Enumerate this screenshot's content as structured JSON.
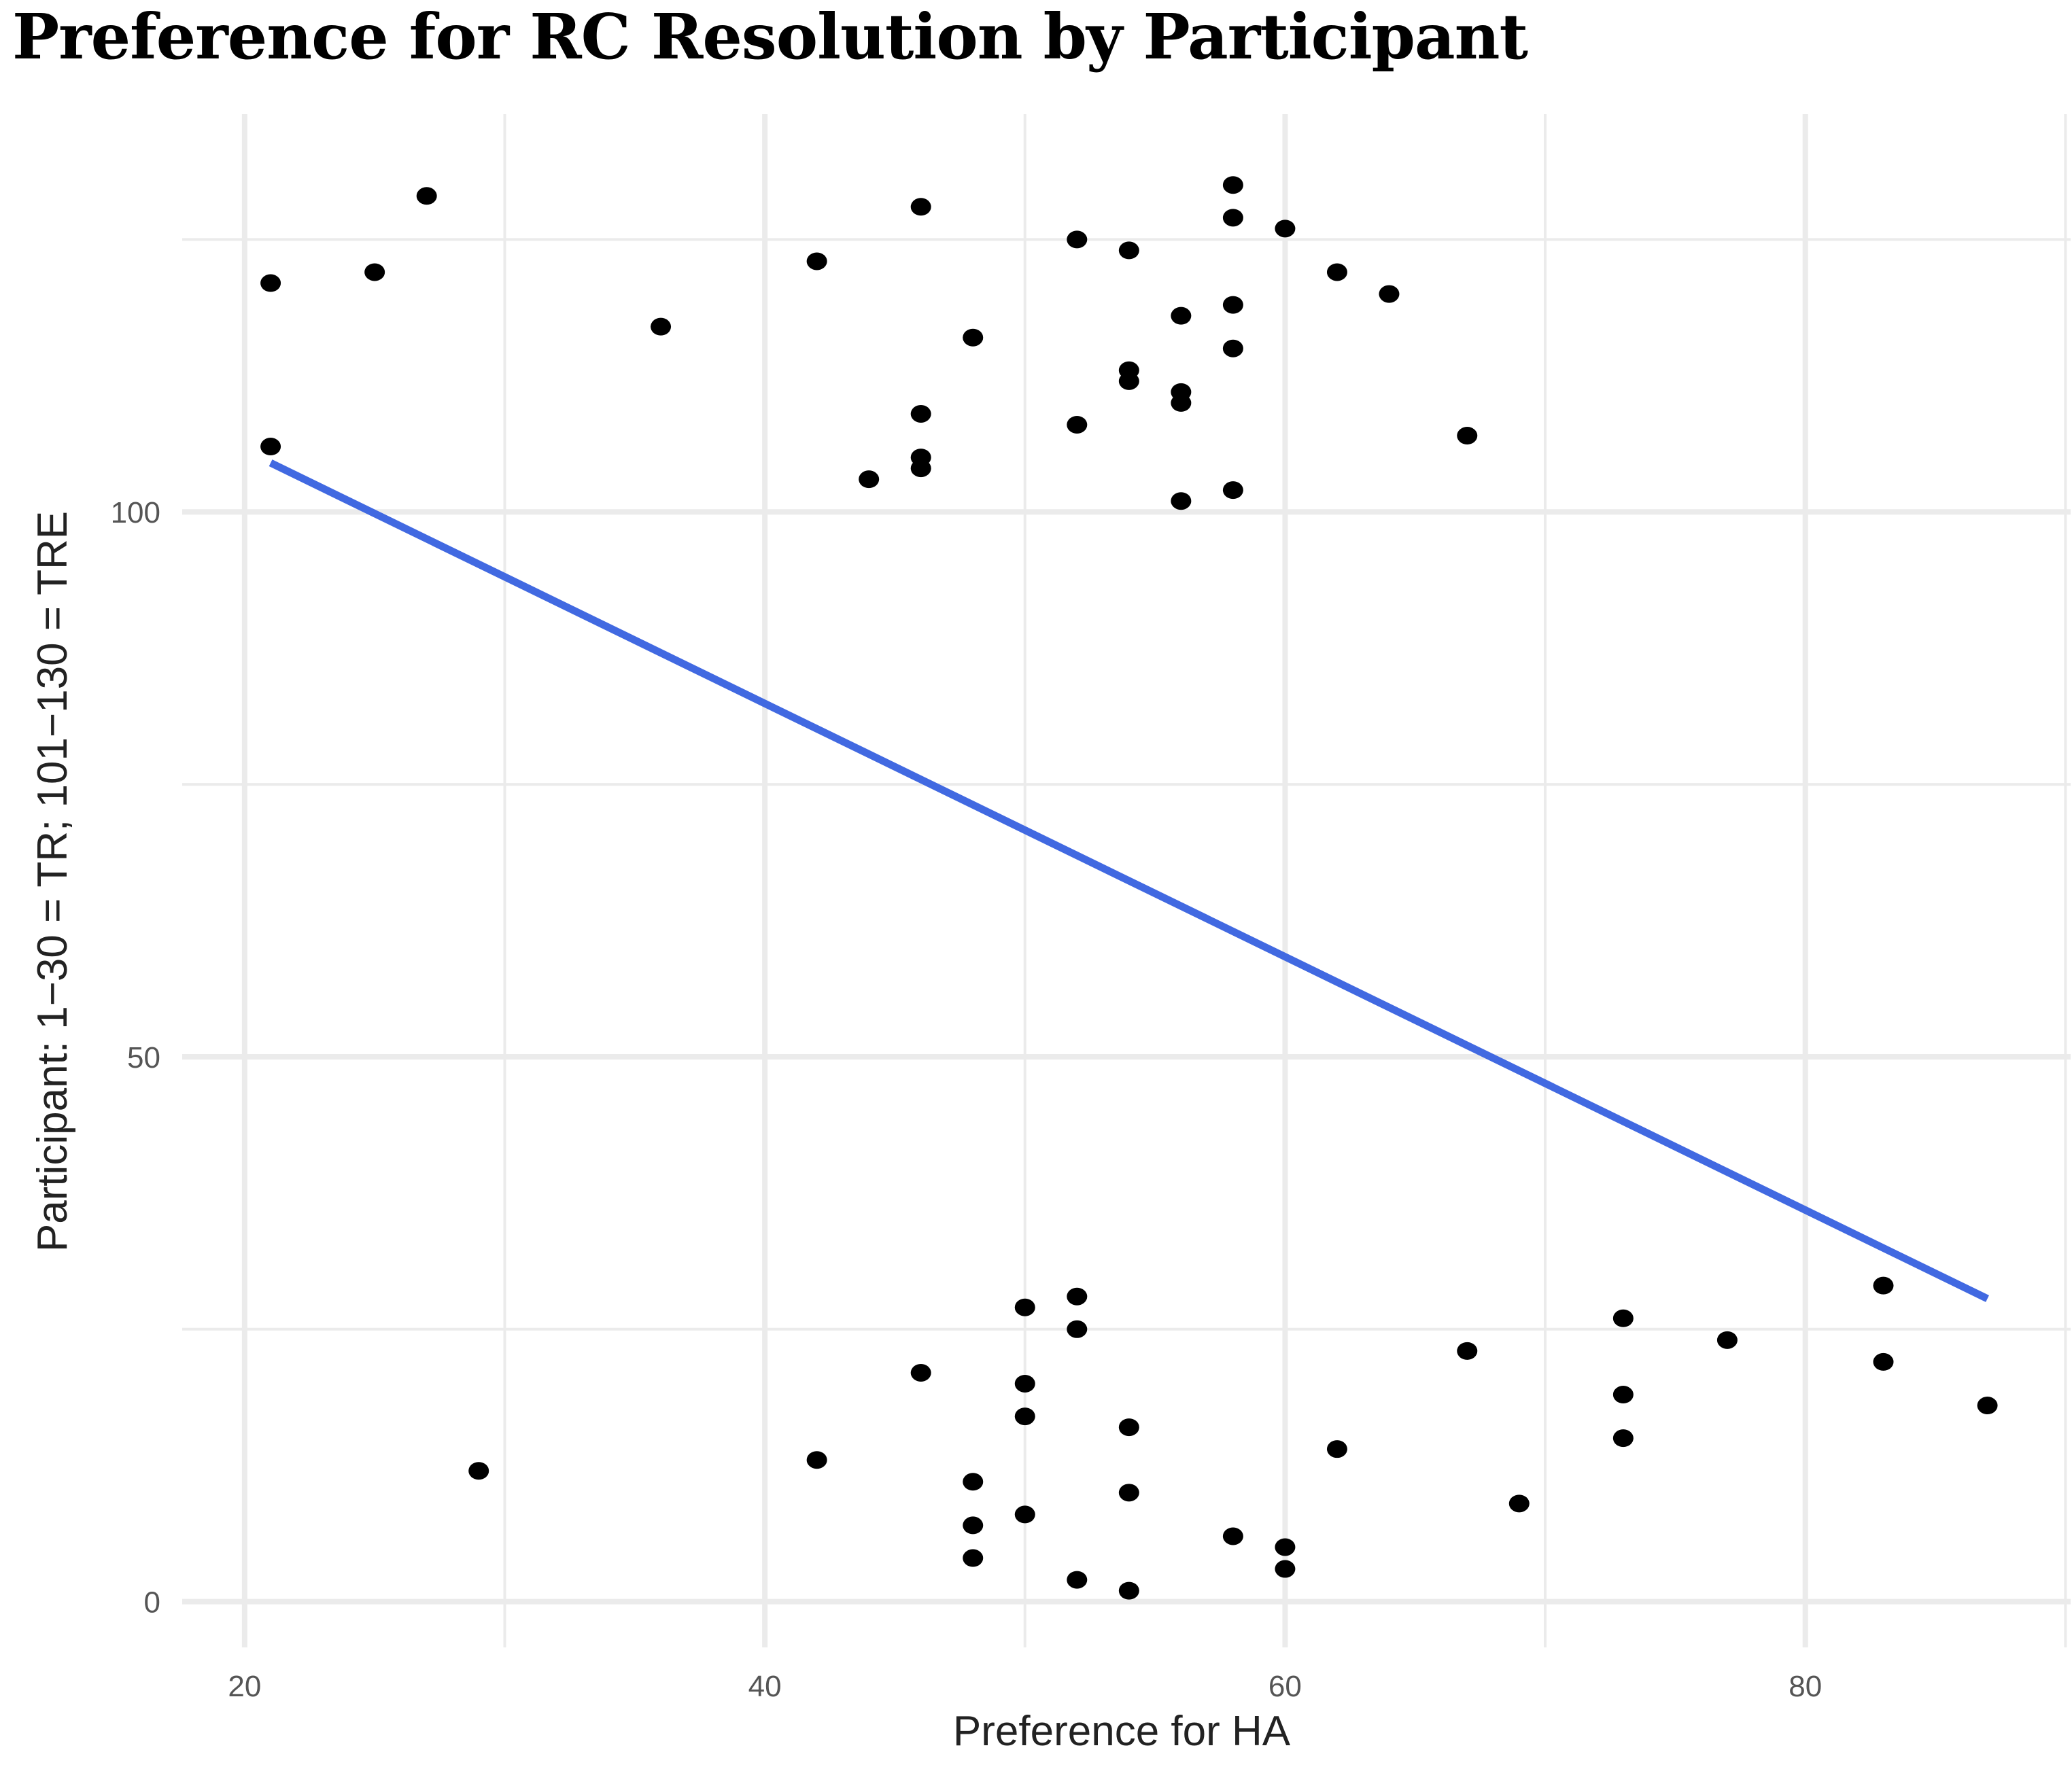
{
  "chart_data": {
    "type": "scatter",
    "title": "Preference for RC Resolution by Participant",
    "xlabel": "Preference for HA",
    "ylabel": "Participant: 1−30 = TR; 101−130 = TRE",
    "xlim": [
      17.6,
      90.2
    ],
    "ylim": [
      -4.2,
      136.5
    ],
    "x_ticks": [
      20,
      40,
      60,
      80
    ],
    "y_ticks": [
      0,
      50,
      100
    ],
    "x_tick_labels": [
      "20",
      "40",
      "60",
      "80"
    ],
    "y_tick_labels": [
      "0",
      "50",
      "100"
    ],
    "grid": true,
    "legend": "none",
    "point_color": "#000000",
    "line_color": "#4169E1",
    "grid_color": "#EBEBEB",
    "series": [
      {
        "name": "participants",
        "points": [
          [
            21,
            121
          ],
          [
            21,
            106
          ],
          [
            25,
            122
          ],
          [
            27,
            129
          ],
          [
            36,
            117
          ],
          [
            42,
            123
          ],
          [
            44,
            103
          ],
          [
            46,
            128
          ],
          [
            46,
            109
          ],
          [
            46,
            105
          ],
          [
            46,
            104
          ],
          [
            48,
            116
          ],
          [
            52,
            125
          ],
          [
            52,
            108
          ],
          [
            54,
            124
          ],
          [
            54,
            113
          ],
          [
            54,
            112
          ],
          [
            56,
            118
          ],
          [
            56,
            111
          ],
          [
            56,
            110
          ],
          [
            56,
            101
          ],
          [
            58,
            130
          ],
          [
            58,
            127
          ],
          [
            58,
            119
          ],
          [
            58,
            115
          ],
          [
            58,
            102
          ],
          [
            60,
            126
          ],
          [
            62,
            122
          ],
          [
            64,
            120
          ],
          [
            67,
            107
          ],
          [
            29,
            12
          ],
          [
            42,
            13
          ],
          [
            46,
            21
          ],
          [
            48,
            11
          ],
          [
            48,
            7
          ],
          [
            48,
            4
          ],
          [
            50,
            27
          ],
          [
            50,
            20
          ],
          [
            50,
            17
          ],
          [
            50,
            8
          ],
          [
            52,
            28
          ],
          [
            52,
            25
          ],
          [
            52,
            2
          ],
          [
            54,
            16
          ],
          [
            54,
            10
          ],
          [
            54,
            1
          ],
          [
            58,
            6
          ],
          [
            60,
            5
          ],
          [
            60,
            3
          ],
          [
            62,
            14
          ],
          [
            67,
            23
          ],
          [
            69,
            9
          ],
          [
            73,
            26
          ],
          [
            73,
            19
          ],
          [
            73,
            15
          ],
          [
            77,
            24
          ],
          [
            83,
            29
          ],
          [
            83,
            22
          ],
          [
            87,
            18
          ]
        ]
      }
    ],
    "trend_line": {
      "x": [
        21,
        87
      ],
      "y": [
        104.5,
        27.8
      ]
    }
  }
}
